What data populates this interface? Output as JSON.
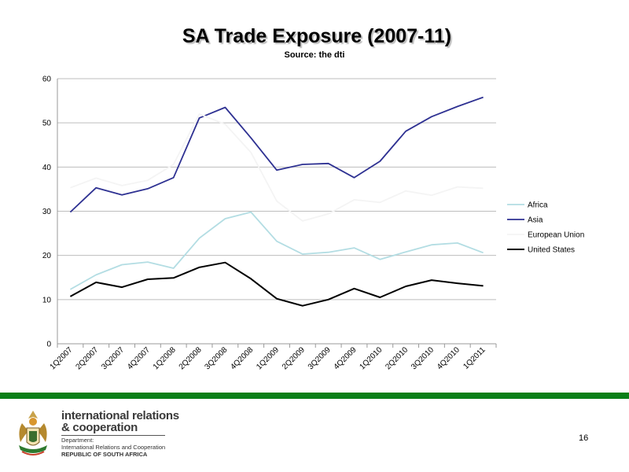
{
  "slide": {
    "title": "SA Trade Exposure (2007-11)",
    "subtitle": "Source: the dti",
    "page_number": "16",
    "accent_color": "#0a7f17"
  },
  "footer": {
    "org_line1": "international relations",
    "org_line2": "& cooperation",
    "dept_line1": "Department:",
    "dept_line2": "International Relations and Cooperation",
    "dept_line3": "REPUBLIC OF SOUTH AFRICA",
    "logo_icon": "coat-of-arms-icon"
  },
  "chart_data": {
    "type": "line",
    "title": "SA Trade Exposure (2007-11)",
    "subtitle": "Source: the dti",
    "xlabel": "",
    "ylabel": "",
    "categories": [
      "1Q2007",
      "2Q2007",
      "3Q2007",
      "4Q2007",
      "1Q2008",
      "2Q2008",
      "3Q2008",
      "4Q2008",
      "1Q2009",
      "2Q2009",
      "3Q2009",
      "4Q2009",
      "1Q2010",
      "2Q2010",
      "3Q2010",
      "4Q2010",
      "1Q2011"
    ],
    "ylim": [
      0,
      60
    ],
    "yticks": [
      0,
      10,
      20,
      30,
      40,
      50,
      60
    ],
    "grid": true,
    "legend_position": "right",
    "series": [
      {
        "name": "Africa",
        "color": "#b3dde3",
        "values": [
          12.3,
          15.6,
          17.9,
          18.5,
          17.1,
          23.9,
          28.3,
          29.8,
          23.2,
          20.3,
          20.7,
          21.7,
          19.1,
          20.8,
          22.4,
          22.8,
          20.6
        ]
      },
      {
        "name": "Asia",
        "color": "#2e3192",
        "values": [
          29.8,
          35.3,
          33.7,
          35.1,
          37.6,
          51.1,
          53.5,
          46.6,
          39.3,
          40.6,
          40.8,
          37.6,
          41.3,
          48.1,
          51.4,
          53.7,
          55.8
        ]
      },
      {
        "name": "European Union",
        "color": "#f4f4f4",
        "values": [
          35.3,
          37.5,
          35.8,
          37.0,
          40.6,
          52.0,
          49.7,
          43.3,
          32.3,
          27.8,
          29.4,
          32.6,
          32.0,
          34.6,
          33.6,
          35.5,
          35.2
        ]
      },
      {
        "name": "United States",
        "color": "#000000",
        "values": [
          10.7,
          13.9,
          12.8,
          14.6,
          14.9,
          17.3,
          18.4,
          14.7,
          10.2,
          8.6,
          10.0,
          12.5,
          10.5,
          13.0,
          14.4,
          13.7,
          13.1
        ]
      }
    ]
  }
}
